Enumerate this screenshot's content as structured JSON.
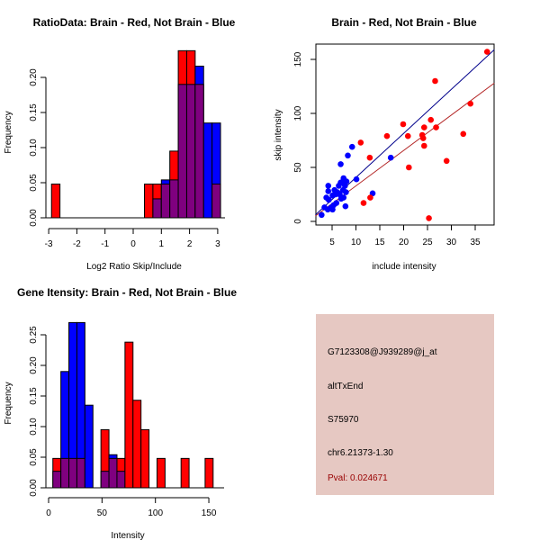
{
  "colors": {
    "brain": "#ff0000",
    "not_brain": "#0000ff",
    "overlap": "#7f007f",
    "info_bg": "#e6c8c2",
    "pval_text": "#990000",
    "brain_line": "#b22222",
    "not_brain_line": "#00008b"
  },
  "chart_data": [
    {
      "type": "bar",
      "title": "RatioData: Brain - Red, Not Brain - Blue",
      "xlabel": "Log2 Ratio Skip/Include",
      "ylabel": "Frequency",
      "xlim": [
        -3,
        3
      ],
      "ylim": [
        0,
        0.24
      ],
      "xticks": [
        "-3",
        "-2",
        "-1",
        "0",
        "1",
        "2",
        "3"
      ],
      "yticks": [
        "0.00",
        "0.05",
        "0.10",
        "0.15",
        "0.20"
      ],
      "bin_width": 0.3,
      "series": [
        {
          "name": "Brain",
          "color": "red",
          "bins": [
            [
              -2.9,
              0.048
            ],
            [
              0.4,
              0.048
            ],
            [
              0.7,
              0.048
            ],
            [
              1.0,
              0.048
            ],
            [
              1.3,
              0.095
            ],
            [
              1.6,
              0.238
            ],
            [
              1.9,
              0.238
            ],
            [
              2.2,
              0.19
            ],
            [
              2.5,
              0.0
            ],
            [
              2.8,
              0.048
            ]
          ]
        },
        {
          "name": "Not Brain",
          "color": "blue",
          "bins": [
            [
              0.7,
              0.027
            ],
            [
              1.0,
              0.054
            ],
            [
              1.3,
              0.054
            ],
            [
              1.6,
              0.19
            ],
            [
              1.9,
              0.19
            ],
            [
              2.2,
              0.216
            ],
            [
              2.5,
              0.135
            ],
            [
              2.8,
              0.135
            ]
          ]
        }
      ]
    },
    {
      "type": "scatter",
      "title": "Brain - Red, Not Brain - Blue",
      "xlabel": "include intensity",
      "ylabel": "skip intensity",
      "xlim": [
        1.5,
        39
      ],
      "ylim": [
        -4,
        164
      ],
      "xticks": [
        "5",
        "10",
        "15",
        "20",
        "25",
        "30",
        "35"
      ],
      "yticks": [
        "0",
        "50",
        "100",
        "150"
      ],
      "series": [
        {
          "name": "Brain",
          "color": "red",
          "points": [
            [
              37.5,
              157
            ],
            [
              26.6,
              130
            ],
            [
              34,
              109
            ],
            [
              19.9,
              90
            ],
            [
              25.7,
              94
            ],
            [
              24.3,
              87
            ],
            [
              26.8,
              87
            ],
            [
              16.5,
              79
            ],
            [
              20.9,
              79
            ],
            [
              23.9,
              80
            ],
            [
              24.1,
              77
            ],
            [
              32.5,
              81
            ],
            [
              11,
              73
            ],
            [
              24.3,
              70
            ],
            [
              12.9,
              59
            ],
            [
              29,
              56
            ],
            [
              21.1,
              50
            ],
            [
              13,
              22
            ],
            [
              11.6,
              17
            ],
            [
              25.3,
              3
            ]
          ],
          "fit": [
            [
              1.5,
              5
            ],
            [
              39,
              128
            ]
          ]
        },
        {
          "name": "Not Brain",
          "color": "blue",
          "points": [
            [
              9.2,
              69
            ],
            [
              8.3,
              61
            ],
            [
              6.8,
              53
            ],
            [
              17.3,
              59
            ],
            [
              10.1,
              39
            ],
            [
              7.4,
              40
            ],
            [
              6.8,
              36
            ],
            [
              7.1,
              36
            ],
            [
              8,
              37
            ],
            [
              6.4,
              33
            ],
            [
              7.7,
              33
            ],
            [
              4.2,
              33
            ],
            [
              6.1,
              27
            ],
            [
              5.5,
              29
            ],
            [
              4.2,
              28
            ],
            [
              7.3,
              29
            ],
            [
              5.1,
              24
            ],
            [
              5.7,
              25
            ],
            [
              6.6,
              25
            ],
            [
              7.9,
              27
            ],
            [
              13.5,
              26
            ],
            [
              3.8,
              22
            ],
            [
              4.3,
              20
            ],
            [
              6.9,
              21
            ],
            [
              7.4,
              22
            ],
            [
              5.9,
              17
            ],
            [
              5.3,
              15
            ],
            [
              3.4,
              13
            ],
            [
              4.8,
              13
            ],
            [
              4.1,
              11
            ],
            [
              5.1,
              11
            ],
            [
              7.8,
              14
            ],
            [
              2.8,
              6
            ]
          ],
          "fit": [
            [
              1.5,
              6
            ],
            [
              39,
              159
            ]
          ]
        }
      ]
    },
    {
      "type": "bar",
      "title": "Gene Itensity: Brain - Red, Not Brain - Blue",
      "xlabel": "Intensity",
      "ylabel": "Frequency",
      "xlim": [
        0,
        160
      ],
      "ylim": [
        0,
        0.28
      ],
      "xticks": [
        "0",
        "50",
        "100",
        "150"
      ],
      "yticks": [
        "0.00",
        "0.05",
        "0.10",
        "0.15",
        "0.20",
        "0.25"
      ],
      "bin_width": 7.5,
      "series": [
        {
          "name": "Brain",
          "color": "red",
          "bins": [
            [
              4,
              0.048
            ],
            [
              11.5,
              0.048
            ],
            [
              19,
              0.048
            ],
            [
              26.5,
              0.048
            ],
            [
              34,
              0
            ],
            [
              49,
              0.095
            ],
            [
              56.5,
              0.048
            ],
            [
              64,
              0.048
            ],
            [
              71.5,
              0.238
            ],
            [
              79,
              0.143
            ],
            [
              86.5,
              0.095
            ],
            [
              101.5,
              0.048
            ],
            [
              124,
              0.048
            ],
            [
              146.5,
              0.048
            ]
          ]
        },
        {
          "name": "Not Brain",
          "color": "blue",
          "bins": [
            [
              4,
              0.027
            ],
            [
              11.5,
              0.19
            ],
            [
              19,
              0.27
            ],
            [
              26.5,
              0.27
            ],
            [
              34,
              0.135
            ],
            [
              49,
              0.027
            ],
            [
              56.5,
              0.054
            ],
            [
              64,
              0.027
            ]
          ]
        }
      ]
    }
  ],
  "info": {
    "probe_id": "G7123308@J939289@j_at",
    "event_type": "altTxEnd",
    "accession": "S75970",
    "location": "chr6.21373-1.30",
    "pval": "Pval: 0.024671"
  }
}
